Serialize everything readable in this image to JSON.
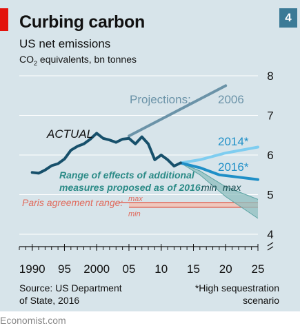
{
  "header": {
    "title": "Curbing carbon",
    "subtitle": "US net emissions",
    "units_main": "CO",
    "units_sub": "2",
    "units_rest": " equivalents, bn tonnes",
    "chart_number": "4"
  },
  "footer": {
    "source_line1": "Source: US Department",
    "source_line2": "of State, 2016",
    "footnote_line1": "*High sequestration",
    "footnote_line2": "scenario",
    "brand": "Economist.com"
  },
  "colors": {
    "background": "#d7e4ea",
    "actual": "#17506b",
    "proj_2006": "#6b93a8",
    "proj_2014": "#7ecdf0",
    "proj_2016": "#1f8fc7",
    "range_fill": "#8fbfbf",
    "range_label": "#2a8a86",
    "paris": "#e06a5c",
    "paris_band": "#f2c3b6",
    "accent_red": "#e3120b"
  },
  "chart_data": {
    "type": "line",
    "title": "Curbing carbon",
    "subtitle": "US net emissions",
    "ylabel": "CO2 equivalents, bn tonnes",
    "xlim": [
      1988,
      2025
    ],
    "ylim": [
      4,
      8
    ],
    "y_ticks": [
      4,
      5,
      6,
      7,
      8
    ],
    "x_ticks": [
      1990,
      1995,
      2000,
      2005,
      2010,
      2015,
      2020,
      2025
    ],
    "x_tick_labels": [
      "1990",
      "95",
      "2000",
      "05",
      "10",
      "15",
      "20",
      "25"
    ],
    "grid": true,
    "series": [
      {
        "name": "ACTUAL",
        "x": [
          1990,
          1991,
          1992,
          1993,
          1994,
          1995,
          1996,
          1997,
          1998,
          1999,
          2000,
          2001,
          2002,
          2003,
          2004,
          2005,
          2006,
          2007,
          2008,
          2009,
          2010,
          2011,
          2012,
          2013
        ],
        "y": [
          5.56,
          5.54,
          5.62,
          5.73,
          5.78,
          5.9,
          6.12,
          6.22,
          6.28,
          6.4,
          6.55,
          6.42,
          6.38,
          6.32,
          6.4,
          6.42,
          6.28,
          6.46,
          6.28,
          5.88,
          6.0,
          5.88,
          5.72,
          5.8
        ]
      },
      {
        "name": "2006",
        "x": [
          2005,
          2020
        ],
        "y": [
          6.48,
          7.75
        ]
      },
      {
        "name": "2014*",
        "x": [
          2013,
          2016,
          2020,
          2025
        ],
        "y": [
          5.8,
          5.88,
          6.05,
          6.2
        ]
      },
      {
        "name": "2016*",
        "x": [
          2013,
          2016,
          2019,
          2022,
          2025
        ],
        "y": [
          5.8,
          5.68,
          5.5,
          5.44,
          5.38
        ]
      }
    ],
    "range_band": {
      "label_line1": "Range of effects of additional",
      "label_line2": "measures proposed as of 2016:",
      "label_min": "min",
      "label_max": "max",
      "x": [
        2013,
        2016,
        2020,
        2025
      ],
      "upper": [
        5.8,
        5.6,
        5.2,
        4.88
      ],
      "lower": [
        5.8,
        5.5,
        4.95,
        4.4
      ]
    },
    "paris_range": {
      "label": "Paris agreement range:",
      "label_max": "max",
      "label_min": "min",
      "x_start": 2005,
      "x_end": 2025,
      "max": 4.8,
      "min": 4.68
    },
    "annotations": {
      "projections": "Projections:",
      "actual": "ACTUAL",
      "p2006": "2006",
      "p2014": "2014*",
      "p2016": "2016*"
    }
  }
}
